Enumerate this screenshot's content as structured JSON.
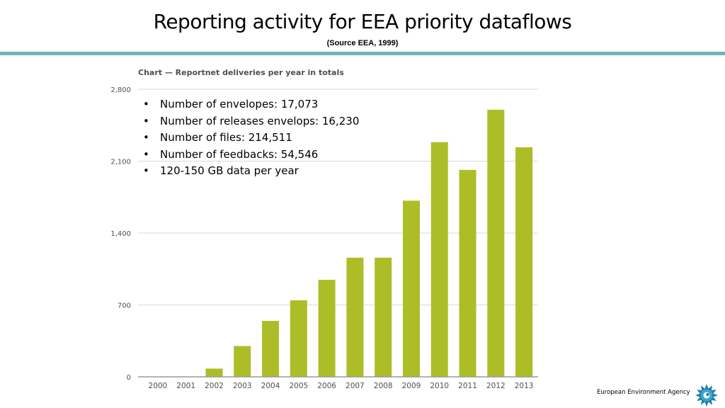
{
  "slide": {
    "title": "Reporting activity for EEA priority dataflows",
    "subtitle": "(Source EEA, 1999)",
    "accent_color": "#6fb7b4"
  },
  "bullets": [
    "Number of envelopes: 17,073",
    "Number of releases envelops: 16,230",
    "Number of files: 214,511",
    "Number of feedbacks: 54,546",
    "120-150 GB data per year"
  ],
  "footer": {
    "agency_name": "European Environment Agency",
    "logo_icon": "eea-logo-icon"
  },
  "chart_data": {
    "type": "bar",
    "title": "Chart — Reportnet deliveries per year in totals",
    "xlabel": "",
    "ylabel": "",
    "categories": [
      "2000",
      "2001",
      "2002",
      "2003",
      "2004",
      "2005",
      "2006",
      "2007",
      "2008",
      "2009",
      "2010",
      "2011",
      "2012",
      "2013"
    ],
    "values": [
      0,
      0,
      80,
      300,
      545,
      745,
      945,
      1160,
      1160,
      1715,
      2285,
      2015,
      2600,
      2235
    ],
    "ylim": [
      0,
      2800
    ],
    "yticks": [
      0,
      700,
      1400,
      2100,
      2800
    ],
    "ytick_labels": [
      "0",
      "700",
      "1,400",
      "2,100",
      "2,800"
    ],
    "grid": true,
    "bar_color": "#adbd27",
    "grid_color": "#d9d9d9"
  }
}
